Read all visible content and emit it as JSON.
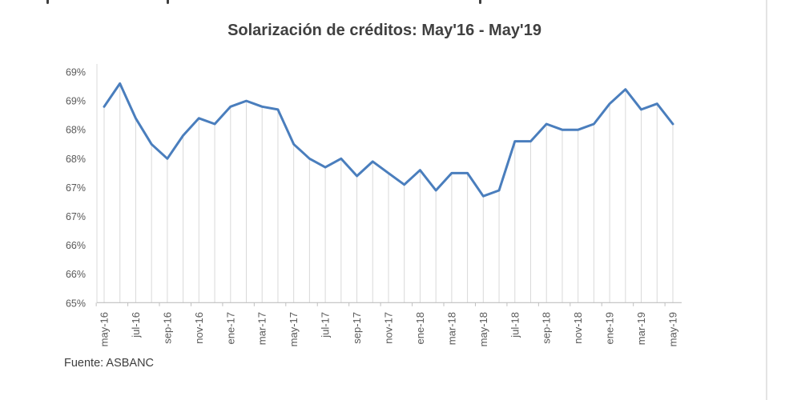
{
  "chart": {
    "title": "Solarización de créditos: May'16 - May'19",
    "source": "Fuente: ASBANC",
    "colors": {
      "line": "#4a7ebd",
      "drop_line": "#d9d9d9",
      "axis_line": "#bfbfbf",
      "plot_border": "#d9d9d9",
      "tick_label": "#595959",
      "title_text": "#404040"
    },
    "y_axis_labels": [
      "69%",
      "69%",
      "68%",
      "68%",
      "67%",
      "67%",
      "66%",
      "66%",
      "65%"
    ],
    "x_axis_labels": [
      "may-16",
      "jul-16",
      "sep-16",
      "nov-16",
      "ene-17",
      "mar-17",
      "may-17",
      "jul-17",
      "sep-17",
      "nov-17",
      "ene-18",
      "mar-18",
      "may-18",
      "jul-18",
      "sep-18",
      "nov-18",
      "ene-19",
      "mar-19",
      "may-19"
    ]
  },
  "chart_data": {
    "type": "line",
    "title": "Solarización de créditos: May'16 - May'19",
    "x": [
      "may-16",
      "jun-16",
      "jul-16",
      "ago-16",
      "sep-16",
      "oct-16",
      "nov-16",
      "dic-16",
      "ene-17",
      "feb-17",
      "mar-17",
      "abr-17",
      "may-17",
      "jun-17",
      "jul-17",
      "ago-17",
      "sep-17",
      "oct-17",
      "nov-17",
      "dic-17",
      "ene-18",
      "feb-18",
      "mar-18",
      "abr-18",
      "may-18",
      "jun-18",
      "jul-18",
      "ago-18",
      "sep-18",
      "oct-18",
      "nov-18",
      "dic-18",
      "ene-19",
      "feb-19",
      "mar-19",
      "abr-19",
      "may-19"
    ],
    "values": [
      68.4,
      68.8,
      68.2,
      67.75,
      67.5,
      67.9,
      68.2,
      68.1,
      68.4,
      68.5,
      68.4,
      68.35,
      67.75,
      67.5,
      67.35,
      67.5,
      67.2,
      67.45,
      67.25,
      67.05,
      67.3,
      66.95,
      67.25,
      67.25,
      66.85,
      66.95,
      67.8,
      67.8,
      68.1,
      68.0,
      68.0,
      68.1,
      68.45,
      68.7,
      68.35,
      68.45,
      68.1
    ],
    "xlabel": "",
    "ylabel": "",
    "ylim": [
      65,
      69
    ],
    "y_tick_step": 0.5,
    "y_tick_label_format": "percent rounded to integer",
    "x_tick_interval_months": 2,
    "grid": "vertical drop lines from each point to x-axis, no horizontal gridlines",
    "legend": "none",
    "source_note": "Fuente: ASBANC"
  }
}
